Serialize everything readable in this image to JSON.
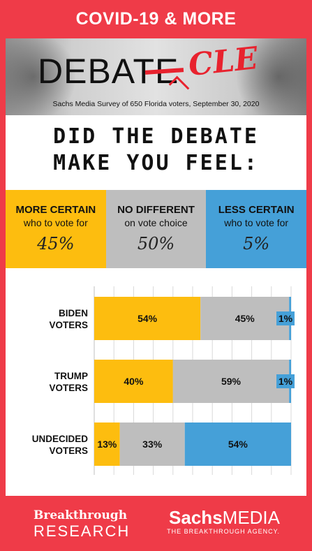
{
  "header": {
    "title": "COVID-19 & MORE"
  },
  "banner": {
    "word": "DEBATE",
    "correction": "CLE",
    "survey_note": "Sachs Media Survey of 650 Florida voters, September 30, 2020"
  },
  "question": {
    "line1": "DID THE DEBATE",
    "line2": "MAKE YOU FEEL:"
  },
  "summary": [
    {
      "title": "MORE CERTAIN",
      "subtitle": "who to vote for",
      "value": "45%",
      "color": "#fdbd0f"
    },
    {
      "title": "NO DIFFERENT",
      "subtitle": "on vote choice",
      "value": "50%",
      "color": "#bebebe"
    },
    {
      "title": "LESS CERTAIN",
      "subtitle": "who to vote for",
      "value": "5%",
      "color": "#45a0d8"
    }
  ],
  "chart_data": {
    "type": "bar",
    "orientation": "horizontal",
    "stacked": true,
    "categories": [
      [
        "BIDEN",
        "VOTERS"
      ],
      [
        "TRUMP",
        "VOTERS"
      ],
      [
        "UNDECIDED",
        "VOTERS"
      ]
    ],
    "series": [
      {
        "name": "MORE CERTAIN",
        "values": [
          54,
          40,
          13
        ],
        "labels": [
          "54%",
          "40%",
          "13%"
        ],
        "color": "#fdbd0f"
      },
      {
        "name": "NO DIFFERENT",
        "values": [
          45,
          59,
          33
        ],
        "labels": [
          "45%",
          "59%",
          "33%"
        ],
        "color": "#bebebe"
      },
      {
        "name": "LESS CERTAIN",
        "values": [
          1,
          1,
          54
        ],
        "labels": [
          "1%",
          "1%",
          "54%"
        ],
        "color": "#45a0d8"
      }
    ],
    "xlim": [
      0,
      100
    ],
    "grid": true
  },
  "footer": {
    "left_line1": "Breakthrough",
    "left_line2": "RESEARCH",
    "right_bold": "Sachs",
    "right_regular": "MEDIA",
    "right_tagline": "THE BREAKTHROUGH AGENCY."
  }
}
